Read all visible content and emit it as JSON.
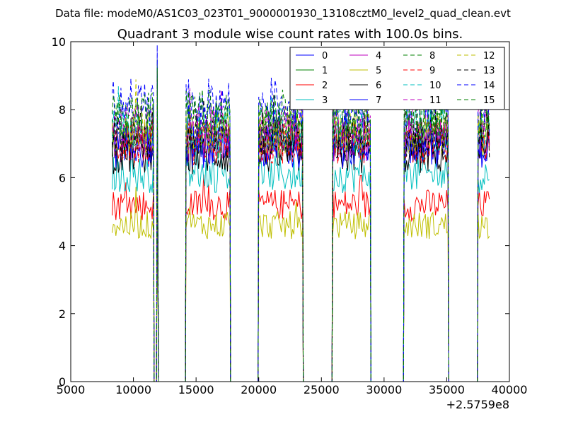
{
  "header": {
    "data_file": "Data file: modeM0/AS1C03_023T01_9000001930_13108cztM0_level2_quad_clean.evt"
  },
  "chart_data": {
    "type": "line",
    "title": "Quadrant 3 module wise count rates with 100.0s bins.",
    "xlabel": "",
    "ylabel": "",
    "xlim": [
      5000,
      40000
    ],
    "ylim": [
      0,
      10
    ],
    "x_ticks": [
      5000,
      10000,
      15000,
      20000,
      25000,
      30000,
      35000,
      40000
    ],
    "x_tick_labels": [
      "5000",
      "10000",
      "15000",
      "20000",
      "25000",
      "30000",
      "35000",
      "40000"
    ],
    "y_ticks": [
      0,
      2,
      4,
      6,
      8,
      10
    ],
    "y_tick_labels": [
      "0",
      "2",
      "4",
      "6",
      "8",
      "10"
    ],
    "x_offset_label": "+2.5759e8",
    "legend_position": "top-right",
    "bin_seconds": 100,
    "segments": [
      {
        "start": 8300,
        "end": 11600
      },
      {
        "start": 11900,
        "end": 11950
      },
      {
        "start": 14200,
        "end": 17700
      },
      {
        "start": 20000,
        "end": 23500
      },
      {
        "start": 25900,
        "end": 28900
      },
      {
        "start": 31600,
        "end": 35100
      },
      {
        "start": 37500,
        "end": 38400
      }
    ],
    "series": [
      {
        "name": "0",
        "color": "#0000ff",
        "style": "solid",
        "level": 7.0
      },
      {
        "name": "1",
        "color": "#008000",
        "style": "solid",
        "level": 7.2
      },
      {
        "name": "2",
        "color": "#ff0000",
        "style": "solid",
        "level": 5.2
      },
      {
        "name": "3",
        "color": "#00bfbf",
        "style": "solid",
        "level": 6.1
      },
      {
        "name": "4",
        "color": "#bf00bf",
        "style": "solid",
        "level": 7.1
      },
      {
        "name": "5",
        "color": "#bfbf00",
        "style": "solid",
        "level": 4.6
      },
      {
        "name": "6",
        "color": "#000000",
        "style": "solid",
        "level": 6.7
      },
      {
        "name": "7",
        "color": "#0000ff",
        "style": "solid",
        "level": 6.9
      },
      {
        "name": "8",
        "color": "#008000",
        "style": "dashed",
        "level": 7.6
      },
      {
        "name": "9",
        "color": "#ff0000",
        "style": "dashed",
        "level": 7.0
      },
      {
        "name": "10",
        "color": "#00bfbf",
        "style": "dashed",
        "level": 7.4
      },
      {
        "name": "11",
        "color": "#bf00bf",
        "style": "dashed",
        "level": 7.5
      },
      {
        "name": "12",
        "color": "#bfbf00",
        "style": "dashed",
        "level": 7.3
      },
      {
        "name": "13",
        "color": "#000000",
        "style": "dashed",
        "level": 7.2
      },
      {
        "name": "14",
        "color": "#0000ff",
        "style": "dashed",
        "level": 8.2
      },
      {
        "name": "15",
        "color": "#008000",
        "style": "dashed",
        "level": 7.9
      }
    ]
  }
}
